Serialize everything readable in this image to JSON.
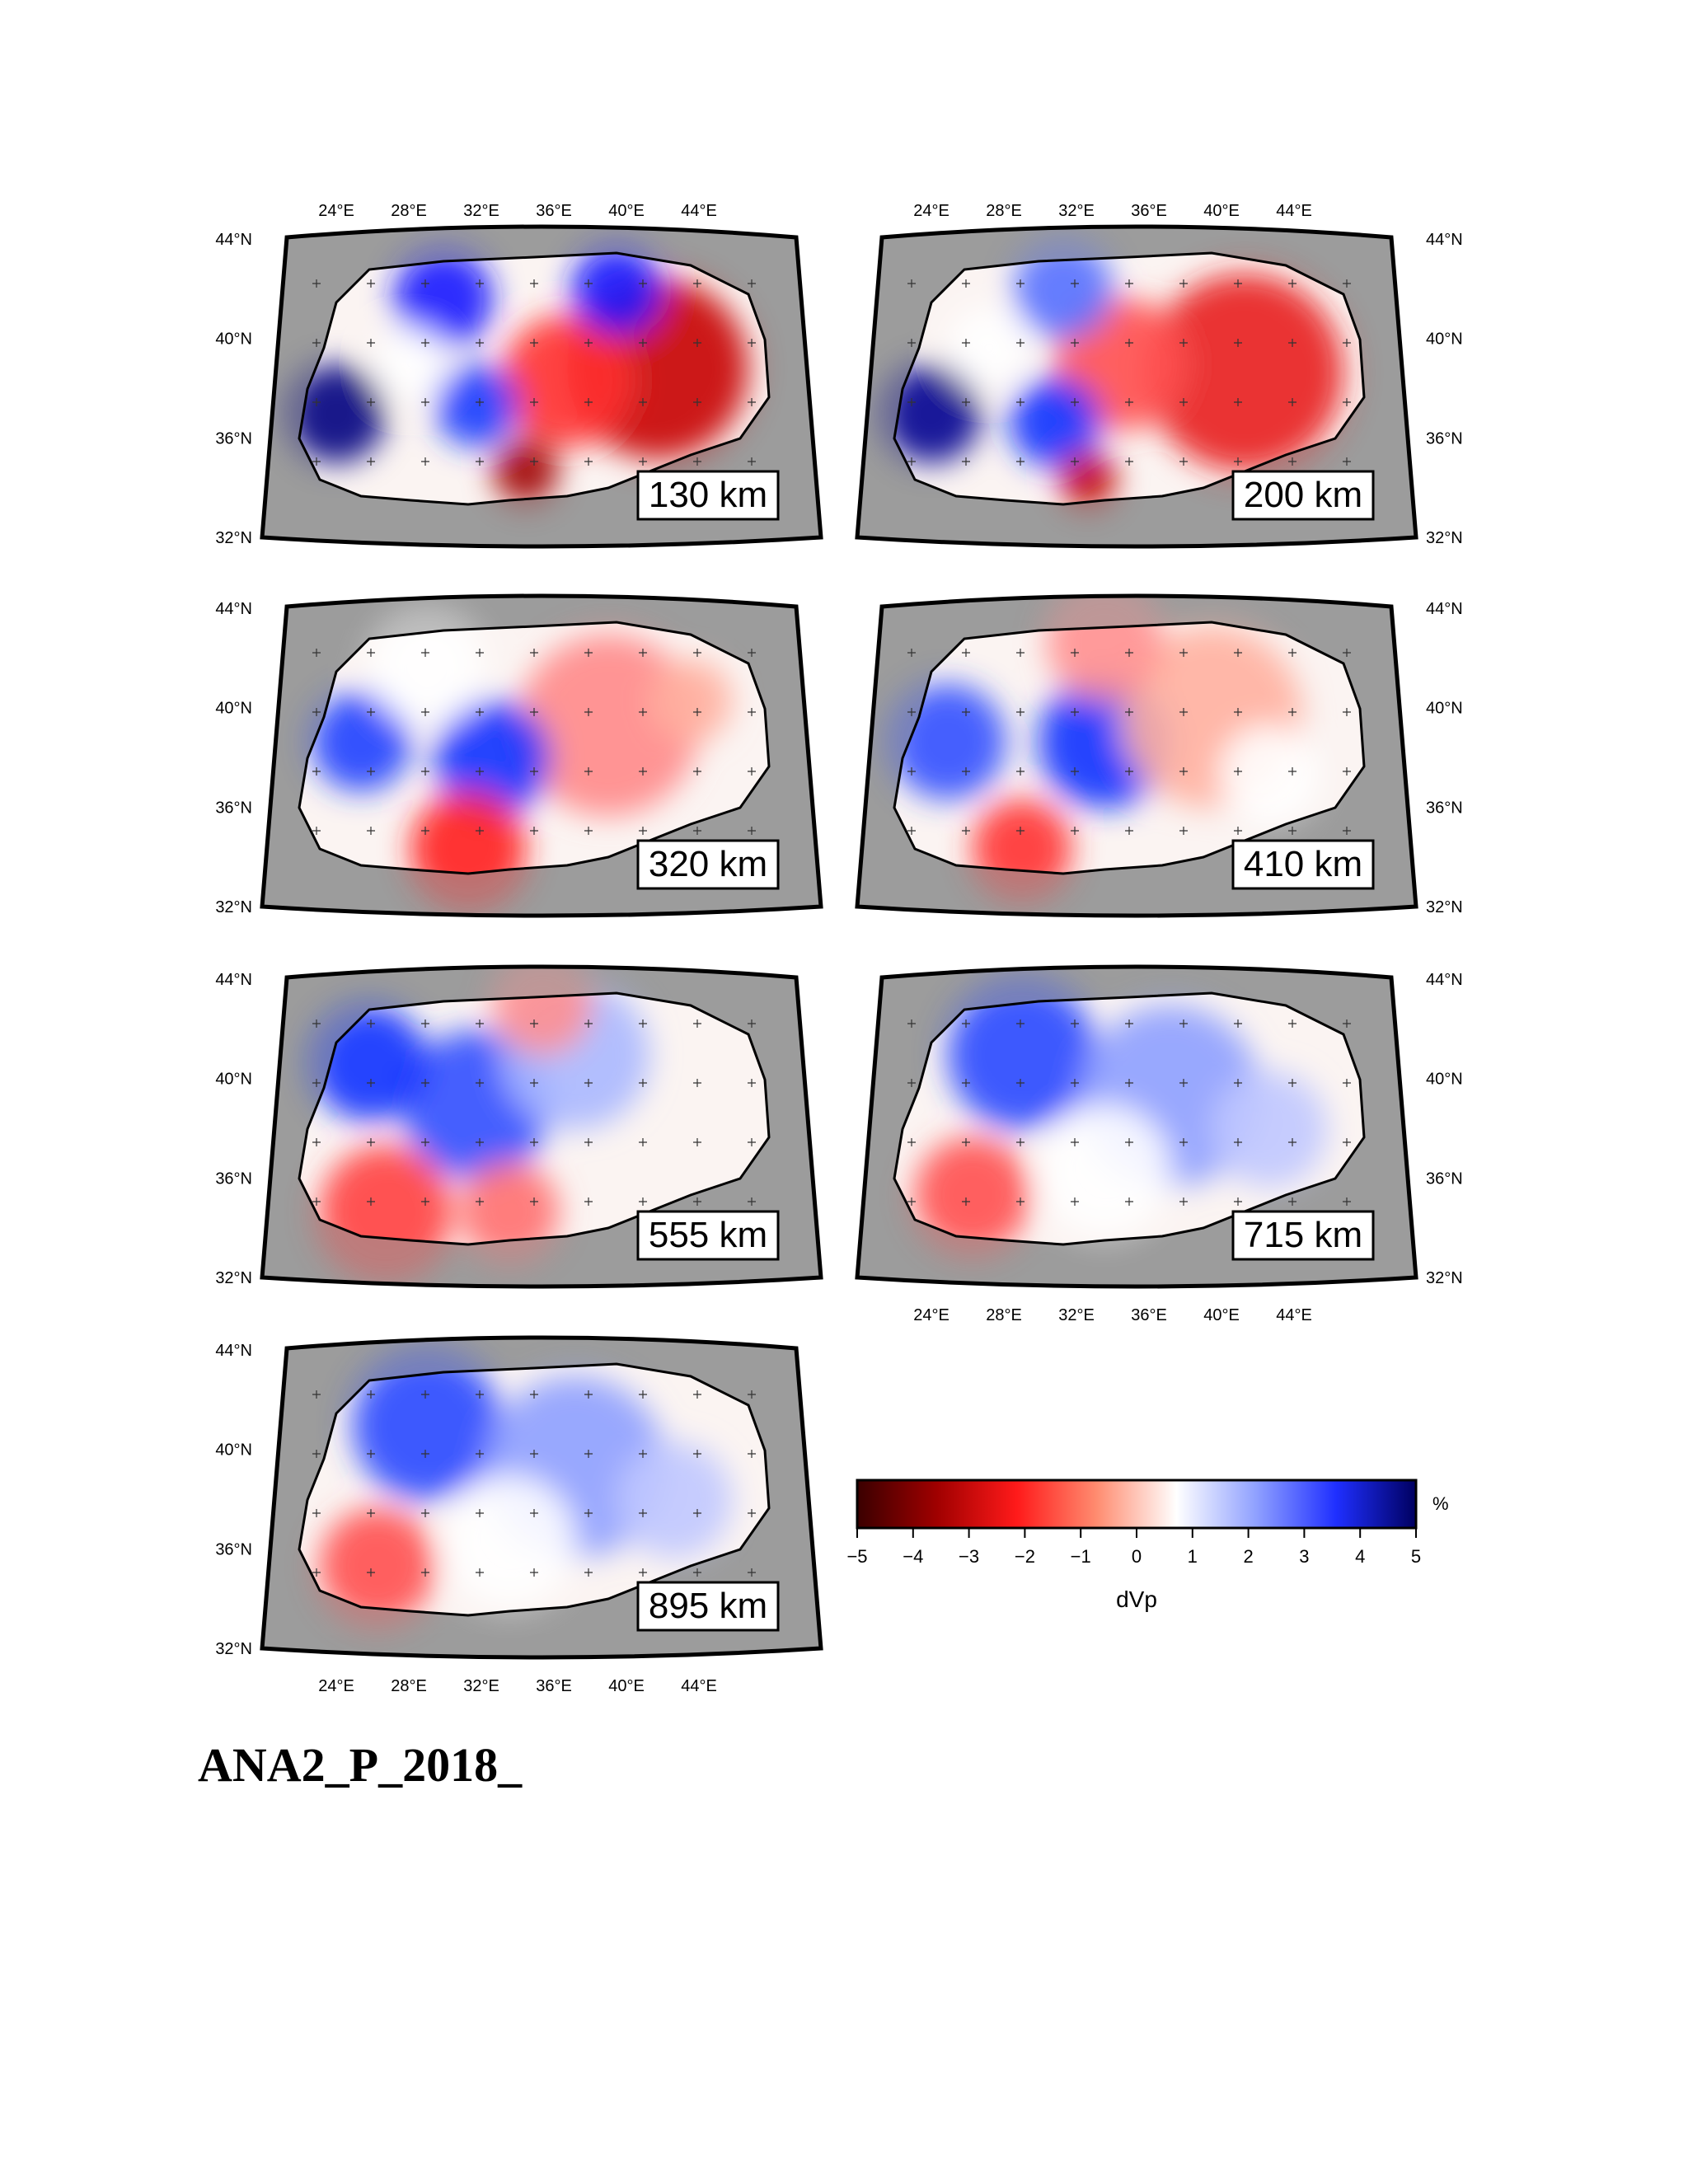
{
  "figure_title": "ANA2_P_2018_",
  "lon_ticks": [
    "24°E",
    "28°E",
    "32°E",
    "36°E",
    "40°E",
    "44°E"
  ],
  "lat_ticks": [
    "44°N",
    "40°N",
    "36°N",
    "32°N"
  ],
  "panels": [
    {
      "depth_label": "130 km",
      "pattern": "strong_red_east",
      "lon_top": true,
      "lon_bottom": false,
      "lat_side": "left"
    },
    {
      "depth_label": "200 km",
      "pattern": "red_east",
      "lon_top": true,
      "lon_bottom": false,
      "lat_side": "right"
    },
    {
      "depth_label": "320 km",
      "pattern": "mixed",
      "lon_top": false,
      "lon_bottom": false,
      "lat_side": "left"
    },
    {
      "depth_label": "410 km",
      "pattern": "central_blue",
      "lon_top": false,
      "lon_bottom": false,
      "lat_side": "right"
    },
    {
      "depth_label": "555 km",
      "pattern": "blue_north_red_south",
      "lon_top": false,
      "lon_bottom": false,
      "lat_side": "left"
    },
    {
      "depth_label": "715 km",
      "pattern": "blue_north",
      "lon_top": false,
      "lon_bottom": true,
      "lat_side": "right"
    },
    {
      "depth_label": "895 km",
      "pattern": "blue_north",
      "lon_top": false,
      "lon_bottom": true,
      "lat_side": "left"
    }
  ],
  "colorbar": {
    "label": "dVp",
    "unit": "%",
    "ticks": [
      "−5",
      "−4",
      "−3",
      "−2",
      "−1",
      "0",
      "1",
      "2",
      "3",
      "4",
      "5"
    ],
    "range": [
      -5,
      5
    ],
    "stops": [
      "#3a0000",
      "#a00000",
      "#ff1a1a",
      "#ff8c70",
      "#ffffff",
      "#8fa0ff",
      "#1f2fff",
      "#000060"
    ]
  },
  "colors": {
    "background_gray": "#9c9c9c",
    "border": "#000000",
    "red": "#e01818",
    "blue": "#1430e0"
  }
}
